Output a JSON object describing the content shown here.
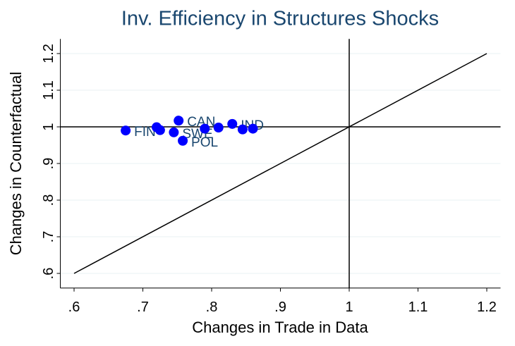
{
  "chart_data": {
    "type": "scatter",
    "title": "Inv. Efficiency in Structures Shocks",
    "x_label": "Changes in Trade in Data",
    "y_label": "Changes in Counterfactual",
    "x": [
      0.675,
      0.72,
      0.725,
      0.745,
      0.752,
      0.758,
      0.79,
      0.81,
      0.83,
      0.845,
      0.86
    ],
    "series": [
      {
        "color": "#0000ff",
        "label_color": "#1a476f",
        "values": [
          0.99,
          0.999,
          0.991,
          0.985,
          1.017,
          0.962,
          0.995,
          0.998,
          1.008,
          0.993,
          0.995
        ],
        "point_labels": [
          "FIN",
          null,
          null,
          "SWE",
          "CAN",
          "POL",
          null,
          null,
          "IND",
          null,
          null
        ]
      }
    ],
    "xlim": [
      0.58,
      1.22
    ],
    "ylim": [
      0.56,
      1.24
    ],
    "xticks": [
      {
        "value": 0.6,
        "label": ".6"
      },
      {
        "value": 0.7,
        "label": ".7"
      },
      {
        "value": 0.8,
        "label": ".8"
      },
      {
        "value": 0.9,
        "label": ".9"
      },
      1,
      1.1,
      1.2
    ],
    "yticks": [
      {
        "value": 0.6,
        "label": ".6"
      },
      {
        "value": 0.7,
        "label": ".7"
      },
      {
        "value": 0.8,
        "label": ".8"
      },
      {
        "value": 0.9,
        "label": ".9"
      },
      1,
      1.1,
      1.2
    ],
    "reference_lines": {
      "x": 1,
      "y": 1
    },
    "diagonal": [
      0.6,
      1.2
    ],
    "grid": true
  }
}
